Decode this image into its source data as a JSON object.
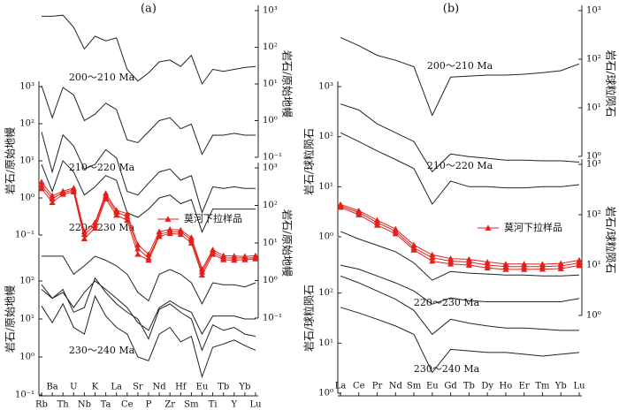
{
  "chart_data": [
    {
      "type": "line",
      "title": "(a)",
      "log_y": true,
      "legend": "right",
      "categories": [
        "Rb",
        "Ba",
        "Th",
        "U",
        "Nb",
        "K",
        "Ta",
        "La",
        "Ce",
        "Sr",
        "P",
        "Nd",
        "Zr",
        "Hf",
        "Sm",
        "Eu",
        "Ti",
        "Tb",
        "Y",
        "Yb",
        "Lu"
      ],
      "axes": [
        {
          "side": "right",
          "label": "岩石/原始地幔",
          "ylim": [
            0.1,
            1000
          ],
          "yticks": [
            {
              "value": 1000,
              "label": "10³"
            },
            {
              "value": 100,
              "label": "10²"
            },
            {
              "value": 10,
              "label": "10¹"
            },
            {
              "value": 1,
              "label": "10⁰"
            },
            {
              "value": 0.1,
              "label": "10⁻¹"
            }
          ]
        },
        {
          "side": "left",
          "label": "岩石/原始地幔",
          "ylim": [
            0.1,
            1000
          ],
          "yticks": [
            {
              "value": 1000,
              "label": "10³"
            },
            {
              "value": 100,
              "label": "10²"
            },
            {
              "value": 10,
              "label": "10¹"
            },
            {
              "value": 1,
              "label": "10⁰"
            },
            {
              "value": 0.1,
              "label": "10⁻¹"
            }
          ]
        },
        {
          "side": "right",
          "label": "岩石/原始地幔",
          "ylim": [
            0.1,
            1000
          ],
          "yticks": [
            {
              "value": 1000,
              "label": "10³"
            },
            {
              "value": 100,
              "label": "10²"
            },
            {
              "value": 10,
              "label": "10¹"
            },
            {
              "value": 1,
              "label": "10⁰"
            },
            {
              "value": 0.1,
              "label": "10⁻¹"
            }
          ]
        },
        {
          "side": "left",
          "label": "岩石/原始地幔",
          "ylim": [
            0.1,
            1000
          ],
          "yticks": [
            {
              "value": 100,
              "label": "10²"
            },
            {
              "value": 10,
              "label": "10¹"
            },
            {
              "value": 1,
              "label": "10⁰"
            },
            {
              "value": 0.1,
              "label": "10⁻¹"
            }
          ]
        }
      ],
      "groups": [
        {
          "label": "200～210 Ma",
          "axis": 0,
          "series": [
            {
              "color": "#222222",
              "values": [
                700,
                700,
                750,
                350,
                90,
                200,
                150,
                180,
                25,
                12,
                20,
                40,
                45,
                30,
                60,
                10,
                25,
                22,
                25,
                28,
                30
              ]
            },
            {
              "color": "#222222",
              "values": [
                9,
                1.2,
                8,
                5,
                1,
                1.5,
                3,
                2,
                0.3,
                0.25,
                0.5,
                1,
                1.2,
                0.6,
                0.8,
                0.12,
                0.4,
                0.4,
                0.45,
                0.4,
                0.4
              ]
            }
          ]
        },
        {
          "label": "210～220 Ma",
          "axis": 1,
          "series": [
            {
              "color": "#222222",
              "values": [
                60,
                5,
                50,
                25,
                6,
                8,
                20,
                12,
                1.5,
                1.2,
                2.5,
                5,
                6,
                3,
                4,
                0.4,
                2,
                1.8,
                2,
                1.8,
                1.8
              ]
            },
            {
              "color": "#222222",
              "values": [
                8,
                1.5,
                10,
                5,
                1.2,
                2,
                4,
                3,
                0.4,
                0.3,
                0.5,
                1,
                1.2,
                0.7,
                0.9,
                0.12,
                0.5,
                0.5,
                0.5,
                0.5,
                0.5
              ]
            }
          ]
        },
        {
          "label": "220～230 Ma",
          "axis": 3,
          "series": [
            {
              "color": "#222222",
              "values": [
                450,
                450,
                450,
                150,
                250,
                450,
                350,
                250,
                150,
                50,
                30,
                150,
                200,
                150,
                90,
                25,
                90,
                80,
                80,
                70,
                90
              ]
            },
            {
              "color": "#222222",
              "values": [
                60,
                35,
                50,
                20,
                50,
                100,
                60,
                35,
                20,
                8,
                5,
                20,
                30,
                20,
                15,
                4,
                12,
                12,
                12,
                10,
                10
              ]
            }
          ]
        },
        {
          "label": "230～240 Ma",
          "axis": 3,
          "series": [
            {
              "color": "#222222",
              "values": [
                80,
                35,
                60,
                15,
                20,
                120,
                50,
                25,
                15,
                10,
                3,
                18,
                25,
                15,
                10,
                1.5,
                7,
                5,
                6,
                4,
                3.5
              ]
            },
            {
              "color": "#222222",
              "values": [
                22,
                8,
                25,
                6,
                4,
                40,
                12,
                6,
                4,
                1,
                0.8,
                4,
                6,
                2.5,
                3.5,
                0.3,
                1.8,
                2.2,
                2.8,
                2,
                1.5
              ]
            }
          ]
        }
      ],
      "series": [
        {
          "name": "莫河下拉样品",
          "color": "#e3201b",
          "marker": "triangle",
          "axis": 2,
          "values": [
            340,
            150,
            220,
            260,
            17,
            30,
            180,
            66,
            51,
            7,
            4,
            17,
            20,
            20,
            12,
            1.7,
            5.8,
            4,
            4,
            4,
            4
          ]
        },
        {
          "color": "#e3201b",
          "marker": "triangle",
          "axis": 2,
          "values": [
            280,
            120,
            200,
            230,
            13,
            25,
            150,
            55,
            40,
            5,
            3.5,
            15,
            18,
            17,
            10,
            1.4,
            5,
            3.6,
            3.5,
            3.6,
            3.8
          ]
        },
        {
          "color": "#e3201b",
          "marker": "triangle",
          "axis": 2,
          "values": [
            420,
            180,
            240,
            290,
            20,
            35,
            210,
            75,
            60,
            9,
            5,
            20,
            23,
            22,
            14,
            2,
            6.6,
            4.6,
            4.5,
            4.4,
            4.6
          ]
        }
      ]
    },
    {
      "type": "line",
      "title": "(b)",
      "log_y": true,
      "legend": "right",
      "categories": [
        "La",
        "Ce",
        "Pr",
        "Nd",
        "Sm",
        "Eu",
        "Gd",
        "Tb",
        "Dy",
        "Ho",
        "Er",
        "Tm",
        "Yb",
        "Lu"
      ],
      "axes": [
        {
          "side": "right",
          "label": "岩石/球粒陨石",
          "ylim": [
            1,
            1000
          ],
          "yticks": [
            {
              "value": 1000,
              "label": "10³"
            },
            {
              "value": 100,
              "label": "10²"
            },
            {
              "value": 10,
              "label": "10¹"
            },
            {
              "value": 1,
              "label": "10⁰"
            }
          ]
        },
        {
          "side": "left",
          "label": "岩石/球粒陨石",
          "ylim": [
            1,
            1000
          ],
          "yticks": [
            {
              "value": 1000,
              "label": "10³"
            },
            {
              "value": 100,
              "label": "10²"
            },
            {
              "value": 10,
              "label": "10¹"
            },
            {
              "value": 1,
              "label": "10⁰"
            }
          ]
        },
        {
          "side": "right",
          "label": "岩石/球粒陨石",
          "ylim": [
            1,
            1000
          ],
          "yticks": [
            {
              "value": 1000,
              "label": "10³"
            },
            {
              "value": 100,
              "label": "10²"
            },
            {
              "value": 10,
              "label": "10¹"
            },
            {
              "value": 1,
              "label": "10⁰"
            }
          ]
        },
        {
          "side": "left",
          "label": "岩石/球粒陨石",
          "ylim": [
            1,
            1000
          ],
          "yticks": [
            {
              "value": 100,
              "label": "10²"
            },
            {
              "value": 10,
              "label": "10¹"
            },
            {
              "value": 1,
              "label": "10⁰"
            }
          ]
        }
      ],
      "groups": [
        {
          "label": "200～210 Ma",
          "axis": 0,
          "series": [
            {
              "color": "#222222",
              "values": [
                280,
                190,
                120,
                95,
                70,
                7,
                43,
                45,
                47,
                47,
                49,
                53,
                58,
                80
              ]
            }
          ]
        },
        {
          "label": "210～220 Ma",
          "axis": 1,
          "series": [
            {
              "color": "#222222",
              "values": [
                450,
                340,
                180,
                120,
                80,
                20,
                45,
                40,
                37,
                34,
                34,
                33,
                33,
                31
              ]
            },
            {
              "color": "#222222",
              "values": [
                120,
                80,
                52,
                35,
                23,
                4.5,
                13,
                10,
                10,
                9.5,
                9.5,
                10,
                10,
                11
              ]
            }
          ]
        },
        {
          "label": "220～230 Ma",
          "axis": 3,
          "series": [
            {
              "color": "#222222",
              "values": [
                1700,
                1200,
                900,
                670,
                400,
                180,
                270,
                250,
                240,
                230,
                230,
                220,
                220,
                230
              ]
            },
            {
              "color": "#222222",
              "values": [
                360,
                300,
                220,
                160,
                110,
                60,
                80,
                70,
                67,
                67,
                67,
                67,
                67,
                78
              ]
            }
          ]
        },
        {
          "label": "230～240 Ma",
          "axis": 3,
          "series": [
            {
              "color": "#222222",
              "values": [
                220,
                160,
                110,
                75,
                45,
                15,
                30,
                25,
                22,
                20,
                20,
                19,
                18,
                18
              ]
            },
            {
              "color": "#222222",
              "values": [
                52,
                40,
                30,
                22,
                15,
                2.6,
                7.5,
                7,
                6.5,
                6.5,
                6,
                5.5,
                6,
                6.5
              ]
            }
          ]
        }
      ],
      "series": [
        {
          "name": "莫河下拉样品",
          "color": "#e3201b",
          "marker": "triangle",
          "axis": 2,
          "values": [
            150,
            110,
            70,
            47,
            22,
            14,
            12,
            11.5,
            10,
            9.3,
            9.3,
            9.3,
            9.6,
            11
          ]
        },
        {
          "color": "#e3201b",
          "marker": "triangle",
          "axis": 2,
          "values": [
            140,
            100,
            62,
            42,
            20,
            12,
            10.5,
            10,
            8.8,
            8.2,
            8.2,
            8.3,
            8.5,
            9.8
          ]
        },
        {
          "color": "#e3201b",
          "marker": "triangle",
          "axis": 2,
          "values": [
            160,
            120,
            78,
            52,
            25,
            16,
            13.5,
            13,
            11.5,
            10.5,
            10.5,
            10.4,
            10.8,
            12.5
          ]
        }
      ]
    }
  ]
}
